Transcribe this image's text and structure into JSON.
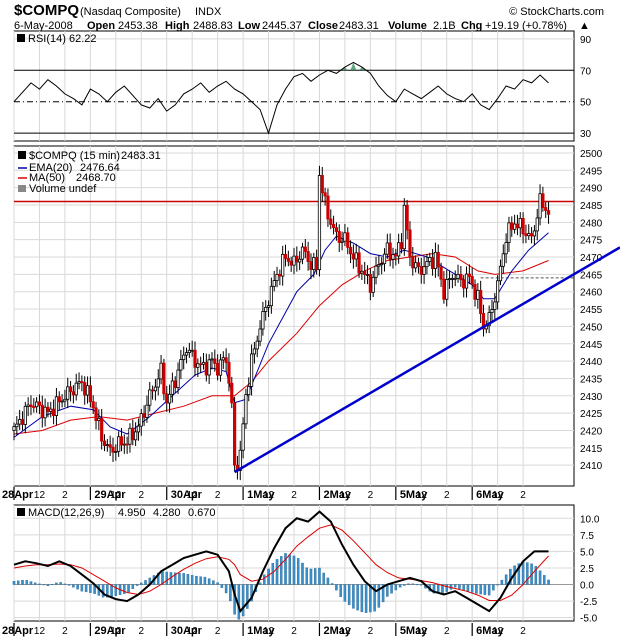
{
  "header": {
    "symbol": "$COMPQ",
    "name": "(Nasdaq Composite)",
    "exchange": "INDX",
    "copyright": "© StockCharts.com",
    "date": "6-May-2008",
    "open_label": "Open",
    "open": "2453.38",
    "high_label": "High",
    "high": "2488.83",
    "low_label": "Low",
    "low": "2445.37",
    "close_label": "Close",
    "close": "2483.31",
    "volume_label": "Volume",
    "volume": "2.1B",
    "chg_label": "Chg",
    "chg": "+19.19 (+0.78%)",
    "chg_arrow": "▲"
  },
  "colors": {
    "price": "#000000",
    "ema": "#0000aa",
    "ma": "#dd0000",
    "resistance": "#cc0000",
    "trendline": "#0000cc",
    "macd": "#000000",
    "signal": "#dd0000",
    "histogram": "#3a8fc8",
    "rsi": "#000000",
    "rsi_fill": "#2e8b57"
  },
  "x_axis": {
    "labels": [
      "28Apr",
      "12",
      "2",
      "29Apr",
      "12",
      "2",
      "30Apr",
      "12",
      "2",
      "1May",
      "12",
      "2",
      "2May",
      "12",
      "2",
      "5May",
      "12",
      "2",
      "6May",
      "12",
      "2"
    ],
    "days": [
      "28Apr",
      "29Apr",
      "30Apr",
      "1May",
      "2May",
      "5May",
      "6May"
    ]
  },
  "chart_data": [
    {
      "type": "line",
      "panel": "rsi",
      "legend": "RSI(14) 62.22",
      "ylim": [
        25,
        95
      ],
      "yticks": [
        30,
        50,
        70,
        90
      ],
      "reference_lines": [
        30,
        50,
        70
      ],
      "x": [
        0,
        3,
        6,
        9,
        12,
        15,
        18,
        21,
        24,
        27,
        30,
        33,
        36,
        39,
        42,
        45,
        48,
        51,
        54,
        57,
        60,
        63,
        66,
        69,
        72,
        75,
        78,
        81,
        84,
        87,
        90,
        93,
        96,
        99,
        102,
        105,
        108,
        111,
        114,
        117,
        120,
        123,
        126,
        129,
        132,
        135,
        138,
        141,
        144,
        147,
        150,
        153,
        156,
        159,
        162,
        165,
        168,
        171,
        174,
        177,
        180,
        183,
        186,
        189
      ],
      "values": [
        50,
        56,
        62,
        58,
        64,
        60,
        55,
        52,
        48,
        58,
        55,
        50,
        56,
        60,
        54,
        48,
        46,
        52,
        44,
        48,
        55,
        58,
        62,
        56,
        60,
        63,
        58,
        55,
        50,
        45,
        30,
        48,
        58,
        66,
        68,
        63,
        67,
        70,
        68,
        72,
        75,
        72,
        68,
        60,
        54,
        50,
        58,
        55,
        52,
        56,
        60,
        55,
        52,
        50,
        55,
        48,
        45,
        52,
        60,
        58,
        64,
        62,
        67,
        62
      ],
      "series": [
        {
          "name": "RSI(14)",
          "value_label": "62.22"
        }
      ]
    },
    {
      "type": "candlestick",
      "panel": "price",
      "legend": [
        {
          "name": "$COMPQ (15 min)",
          "value": "2483.31"
        },
        {
          "name": "EMA(20)",
          "value": "2476.64"
        },
        {
          "name": "MA(50)",
          "value": "2468.70"
        },
        {
          "name": "Volume undef",
          "value": ""
        }
      ],
      "ylim": [
        2404,
        2502
      ],
      "yticks": [
        2410,
        2415,
        2420,
        2425,
        2430,
        2435,
        2440,
        2445,
        2450,
        2455,
        2460,
        2465,
        2470,
        2475,
        2480,
        2485,
        2490,
        2495,
        2500
      ],
      "close_path": [
        [
          0,
          2420
        ],
        [
          6,
          2428
        ],
        [
          12,
          2425
        ],
        [
          18,
          2430
        ],
        [
          24,
          2434
        ],
        [
          28,
          2427
        ],
        [
          31,
          2418
        ],
        [
          34,
          2414
        ],
        [
          37,
          2416
        ],
        [
          40,
          2417
        ],
        [
          44,
          2421
        ],
        [
          48,
          2430
        ],
        [
          52,
          2437
        ],
        [
          54,
          2428
        ],
        [
          58,
          2437
        ],
        [
          61,
          2444
        ],
        [
          64,
          2440
        ],
        [
          67,
          2438
        ],
        [
          70,
          2440
        ],
        [
          72,
          2438
        ],
        [
          75,
          2441
        ],
        [
          77,
          2427
        ],
        [
          78,
          2409
        ],
        [
          80,
          2413
        ],
        [
          82,
          2430
        ],
        [
          84,
          2440
        ],
        [
          87,
          2450
        ],
        [
          90,
          2458
        ],
        [
          93,
          2465
        ],
        [
          96,
          2470
        ],
        [
          99,
          2468
        ],
        [
          102,
          2472
        ],
        [
          105,
          2468
        ],
        [
          107,
          2467
        ],
        [
          108,
          2494
        ],
        [
          110,
          2485
        ],
        [
          112,
          2480
        ],
        [
          114,
          2476
        ],
        [
          117,
          2475
        ],
        [
          120,
          2470
        ],
        [
          123,
          2466
        ],
        [
          126,
          2462
        ],
        [
          129,
          2468
        ],
        [
          132,
          2472
        ],
        [
          135,
          2470
        ],
        [
          137,
          2475
        ],
        [
          138,
          2484
        ],
        [
          140,
          2470
        ],
        [
          143,
          2466
        ],
        [
          146,
          2468
        ],
        [
          149,
          2470
        ],
        [
          152,
          2460
        ],
        [
          155,
          2465
        ],
        [
          158,
          2463
        ],
        [
          161,
          2464
        ],
        [
          164,
          2458
        ],
        [
          166,
          2450
        ],
        [
          168,
          2452
        ],
        [
          171,
          2462
        ],
        [
          174,
          2476
        ],
        [
          177,
          2480
        ],
        [
          180,
          2478
        ],
        [
          183,
          2475
        ],
        [
          186,
          2486
        ],
        [
          189,
          2483
        ]
      ],
      "ema_path": [
        [
          0,
          2418
        ],
        [
          10,
          2424
        ],
        [
          20,
          2427
        ],
        [
          28,
          2426
        ],
        [
          34,
          2421
        ],
        [
          40,
          2419
        ],
        [
          48,
          2424
        ],
        [
          56,
          2430
        ],
        [
          64,
          2436
        ],
        [
          70,
          2438
        ],
        [
          75,
          2437
        ],
        [
          78,
          2428
        ],
        [
          82,
          2429
        ],
        [
          90,
          2445
        ],
        [
          100,
          2460
        ],
        [
          106,
          2465
        ],
        [
          110,
          2472
        ],
        [
          114,
          2476
        ],
        [
          120,
          2474
        ],
        [
          126,
          2471
        ],
        [
          132,
          2470
        ],
        [
          138,
          2472
        ],
        [
          146,
          2470
        ],
        [
          154,
          2466
        ],
        [
          162,
          2462
        ],
        [
          166,
          2458
        ],
        [
          170,
          2458
        ],
        [
          176,
          2466
        ],
        [
          182,
          2472
        ],
        [
          189,
          2477
        ]
      ],
      "ma_path": [
        [
          0,
          2419
        ],
        [
          10,
          2420
        ],
        [
          20,
          2423
        ],
        [
          30,
          2424
        ],
        [
          40,
          2423
        ],
        [
          50,
          2425
        ],
        [
          60,
          2427
        ],
        [
          70,
          2430
        ],
        [
          78,
          2430
        ],
        [
          84,
          2434
        ],
        [
          90,
          2440
        ],
        [
          100,
          2448
        ],
        [
          108,
          2456
        ],
        [
          116,
          2462
        ],
        [
          124,
          2466
        ],
        [
          132,
          2469
        ],
        [
          140,
          2470
        ],
        [
          148,
          2471
        ],
        [
          156,
          2470
        ],
        [
          164,
          2466
        ],
        [
          170,
          2465
        ],
        [
          180,
          2466
        ],
        [
          189,
          2469
        ]
      ],
      "resistance_level": 2486,
      "current_price_marker": 2464,
      "trendline": {
        "from": [
          78,
          2408
        ],
        "to": [
          200,
          2466
        ]
      }
    },
    {
      "type": "line",
      "panel": "macd",
      "legend": [
        {
          "name": "MACD(12,26,9)",
          "value": "4.950"
        },
        {
          "name": "",
          "value": "4.280"
        },
        {
          "name": "",
          "value": "0.670"
        }
      ],
      "ylim": [
        -5.5,
        12
      ],
      "yticks": [
        -5.0,
        -2.5,
        0.0,
        2.5,
        5.0,
        7.5,
        10.0
      ],
      "ytick_labels": [
        "-5.0",
        "-2.5",
        "0.0",
        "2.5",
        "5.0",
        "7.5",
        "10.0"
      ],
      "x": [
        0,
        4,
        8,
        12,
        16,
        20,
        24,
        28,
        32,
        36,
        40,
        44,
        48,
        52,
        56,
        60,
        64,
        68,
        72,
        76,
        78,
        80,
        84,
        88,
        92,
        96,
        100,
        104,
        108,
        112,
        116,
        120,
        124,
        128,
        132,
        136,
        140,
        144,
        148,
        152,
        156,
        160,
        164,
        168,
        172,
        176,
        180,
        184,
        189
      ],
      "macd": [
        3.0,
        3.5,
        3.2,
        2.8,
        3.5,
        2.8,
        1.5,
        0.2,
        -1.5,
        -2.2,
        -2.5,
        -1.5,
        0.0,
        2.0,
        3.0,
        4.0,
        4.5,
        5.0,
        4.5,
        2.0,
        -1.5,
        -4.0,
        -2.0,
        2.0,
        5.5,
        8.5,
        10.0,
        9.5,
        11.0,
        9.5,
        6.0,
        3.0,
        0.5,
        -1.0,
        0.0,
        0.5,
        1.0,
        0.5,
        -1.0,
        -1.5,
        -1.0,
        -2.0,
        -3.0,
        -4.0,
        -2.0,
        1.0,
        3.5,
        5.0,
        5.0
      ],
      "signal": [
        2.5,
        2.8,
        3.0,
        3.0,
        3.1,
        3.0,
        2.5,
        1.5,
        0.5,
        -0.5,
        -1.2,
        -1.5,
        -1.0,
        0.0,
        1.2,
        2.3,
        3.2,
        3.9,
        4.2,
        3.8,
        3.0,
        1.5,
        0.5,
        0.8,
        2.0,
        3.8,
        5.8,
        7.2,
        8.5,
        9.0,
        8.2,
        6.6,
        4.8,
        3.0,
        1.8,
        1.0,
        0.8,
        0.6,
        0.3,
        -0.2,
        -0.6,
        -1.0,
        -1.6,
        -2.4,
        -2.4,
        -1.6,
        0.0,
        2.0,
        4.3
      ],
      "histogram": [
        0.5,
        0.7,
        0.2,
        -0.2,
        0.4,
        -0.2,
        -1.0,
        -1.3,
        -2.0,
        -1.7,
        -1.3,
        0.0,
        1.0,
        2.0,
        1.8,
        1.7,
        1.3,
        1.1,
        0.3,
        -1.8,
        -4.5,
        -5.5,
        -2.5,
        1.2,
        3.5,
        4.7,
        4.2,
        2.3,
        2.5,
        0.5,
        -2.2,
        -3.6,
        -4.3,
        -4.0,
        -1.8,
        -0.5,
        0.2,
        -0.1,
        -1.3,
        -1.3,
        -0.4,
        -1.0,
        -1.4,
        -1.6,
        0.4,
        2.6,
        3.5,
        3.0,
        0.7
      ],
      "series": [
        {
          "name": "MACD(12,26,9)",
          "value_label": "4.950"
        },
        {
          "name": "",
          "value_label": "4.280"
        },
        {
          "name": "",
          "value_label": "0.670"
        }
      ]
    }
  ]
}
